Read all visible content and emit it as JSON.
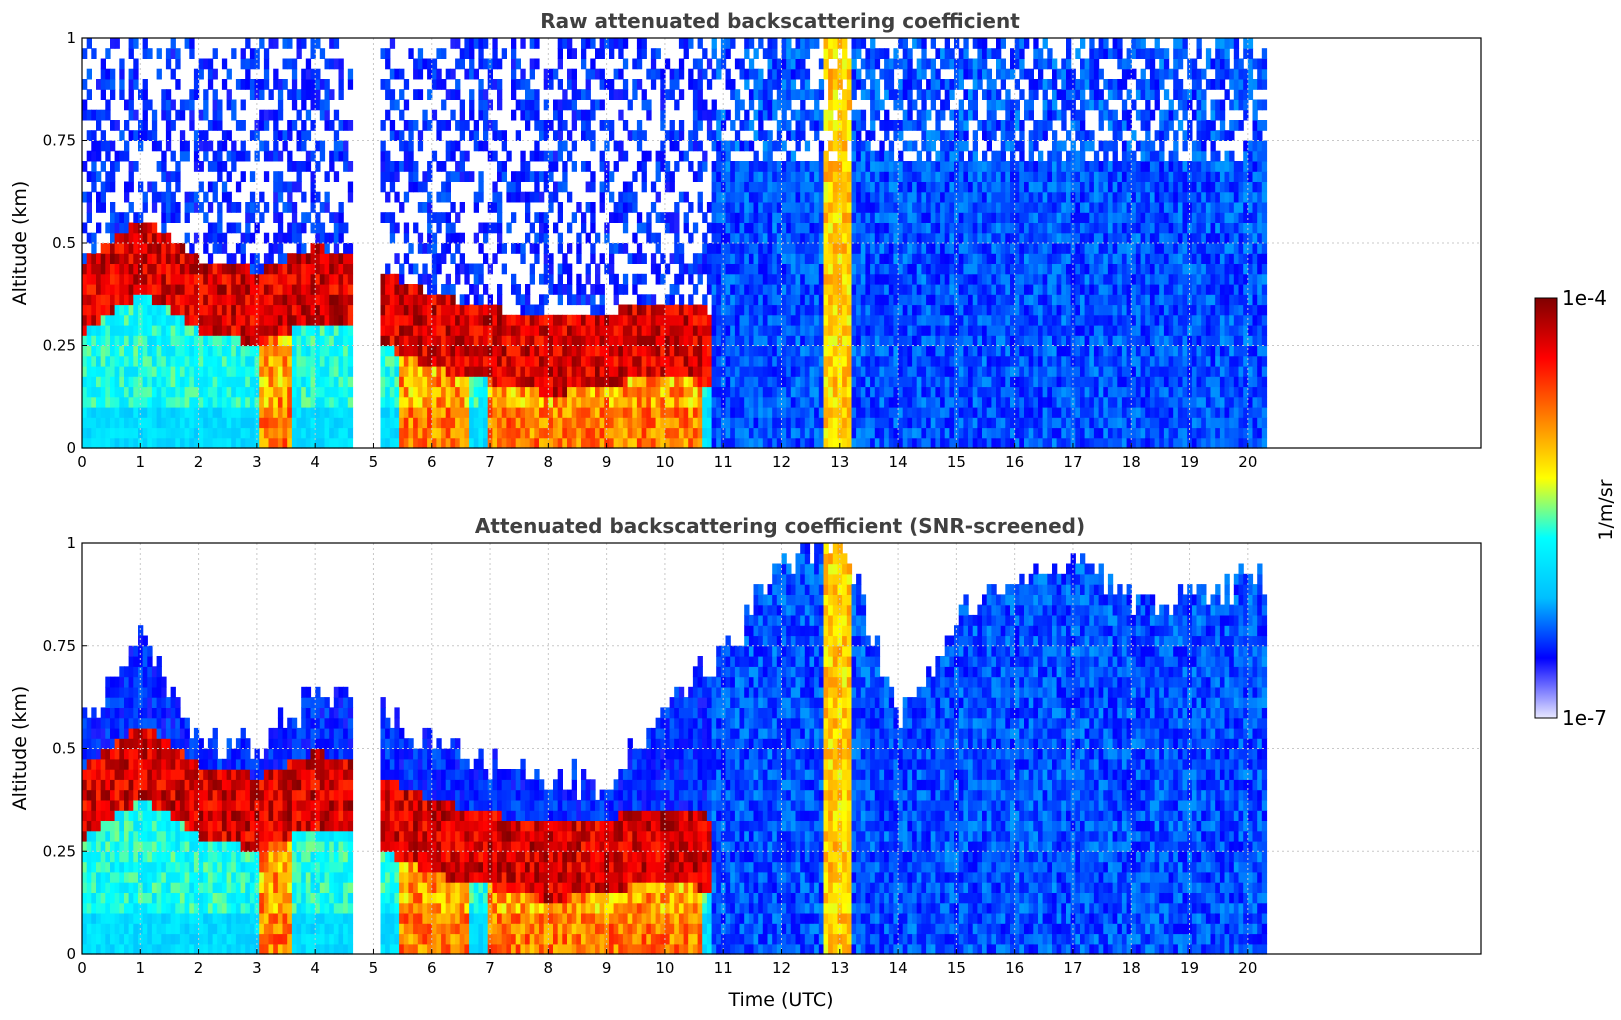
{
  "chart_data": [
    {
      "type": "heatmap",
      "title": "Raw attenuated backscattering coefficient",
      "xlabel": "",
      "ylabel": "Altitude (km)",
      "xlim": [
        0,
        24
      ],
      "ylim": [
        0,
        1
      ],
      "x_ticks": [
        "0",
        "1",
        "2",
        "3",
        "4",
        "5",
        "6",
        "7",
        "8",
        "9",
        "10",
        "11",
        "12",
        "13",
        "14",
        "15",
        "16",
        "17",
        "18",
        "19",
        "20"
      ],
      "y_ticks": [
        "0",
        "0.25",
        "0.5",
        "0.75",
        "1"
      ],
      "data_gaps_utc": [
        [
          4.6,
          5.05
        ],
        [
          20.3,
          24
        ]
      ],
      "aerosol_layer_top_km": [
        [
          0,
          0.45
        ],
        [
          1,
          0.55
        ],
        [
          2,
          0.45
        ],
        [
          3,
          0.42
        ],
        [
          4,
          0.48
        ],
        [
          4.6,
          0.46
        ],
        [
          5.05,
          0.42
        ],
        [
          6,
          0.36
        ],
        [
          7,
          0.33
        ],
        [
          8,
          0.3
        ],
        [
          9,
          0.32
        ],
        [
          10,
          0.35
        ],
        [
          10.8,
          0.32
        ]
      ],
      "high_values_near_surface_utc": [
        [
          3,
          3.6
        ],
        [
          5.4,
          6.6
        ],
        [
          6.9,
          10.6
        ],
        [
          12.7,
          13.2
        ]
      ],
      "screened": false
    },
    {
      "type": "heatmap",
      "title": "Attenuated backscattering coefficient (SNR-screened)",
      "xlabel": "Time (UTC)",
      "ylabel": "Altitude (km)",
      "xlim": [
        0,
        24
      ],
      "ylim": [
        0,
        1
      ],
      "x_ticks": [
        "0",
        "1",
        "2",
        "3",
        "4",
        "5",
        "6",
        "7",
        "8",
        "9",
        "10",
        "11",
        "12",
        "13",
        "14",
        "15",
        "16",
        "17",
        "18",
        "19",
        "20"
      ],
      "y_ticks": [
        "0",
        "0.25",
        "0.5",
        "0.75",
        "1"
      ],
      "data_gaps_utc": [
        [
          4.6,
          5.05
        ],
        [
          20.3,
          24
        ]
      ],
      "signal_top_km": [
        [
          0,
          0.55
        ],
        [
          1,
          0.75
        ],
        [
          2,
          0.5
        ],
        [
          3,
          0.5
        ],
        [
          4,
          0.62
        ],
        [
          4.6,
          0.62
        ],
        [
          5.05,
          0.6
        ],
        [
          6,
          0.5
        ],
        [
          7,
          0.46
        ],
        [
          8,
          0.42
        ],
        [
          9,
          0.4
        ],
        [
          10,
          0.6
        ],
        [
          11,
          0.72
        ],
        [
          12,
          0.95
        ],
        [
          13,
          1.0
        ],
        [
          14,
          0.55
        ],
        [
          15,
          0.8
        ],
        [
          16,
          0.9
        ],
        [
          17,
          0.95
        ],
        [
          18,
          0.85
        ],
        [
          19,
          0.85
        ],
        [
          20,
          0.9
        ]
      ],
      "screened": true
    }
  ],
  "colorbar": {
    "label": "1/m/sr",
    "max_label": "1e-4",
    "min_label": "1e-7",
    "scale": "log",
    "colormap": "jet",
    "colors": [
      "#e8e8ff",
      "#0000ff",
      "#00bfff",
      "#00ffff",
      "#ffff00",
      "#ff8000",
      "#ff0000",
      "#800000"
    ]
  }
}
